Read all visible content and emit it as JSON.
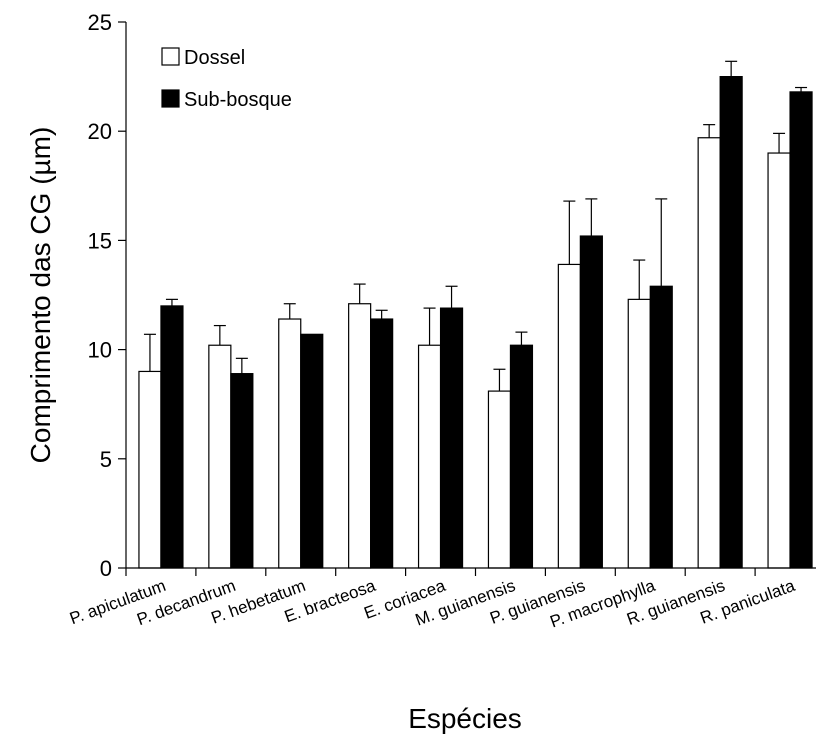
{
  "chart_data": {
    "type": "bar",
    "ylabel": "Comprimento das CG (µm)",
    "xlabel": "Espécies",
    "ylim": [
      0,
      25
    ],
    "yticks": [
      0,
      5,
      10,
      15,
      20,
      25
    ],
    "grid": false,
    "legend_position": "top-left",
    "categories": [
      "P. apiculatum",
      "P. decandrum",
      "P. hebetatum",
      "E. bracteosa",
      "E. coriacea",
      "M. guianensis",
      "P. guianensis",
      "P. macrophylla",
      "R. guianensis",
      "R. paniculata"
    ],
    "series": [
      {
        "name": "Dossel",
        "color": "#ffffff",
        "values": [
          9.0,
          10.2,
          11.4,
          12.1,
          10.2,
          8.1,
          13.9,
          12.3,
          19.7,
          19.0
        ],
        "errors": [
          1.7,
          0.9,
          0.7,
          0.9,
          1.7,
          1.0,
          2.9,
          1.8,
          0.6,
          0.9
        ]
      },
      {
        "name": "Sub-bosque",
        "color": "#000000",
        "values": [
          12.0,
          8.9,
          10.7,
          11.4,
          11.9,
          10.2,
          15.2,
          12.9,
          22.5,
          21.8
        ],
        "errors": [
          0.3,
          0.7,
          0.0,
          0.4,
          1.0,
          0.6,
          1.7,
          4.0,
          0.7,
          0.2
        ]
      }
    ]
  }
}
